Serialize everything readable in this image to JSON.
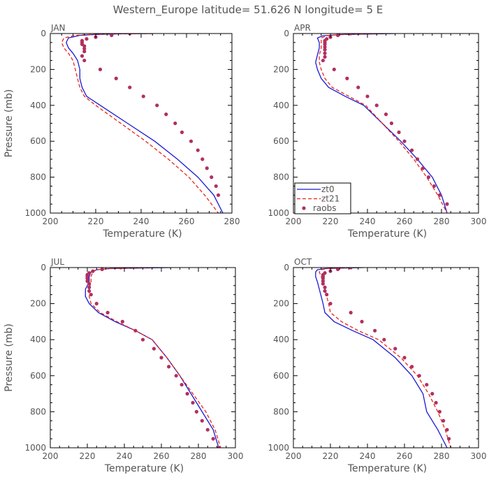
{
  "title": "Western_Europe  latitude= 51.626 N longitude= 5 E",
  "colors": {
    "zt0": "#1a1ad6",
    "zt21": "#e8261a",
    "raobs": "#b03060",
    "axis": "#000000",
    "text": "#555555"
  },
  "chart_data": [
    {
      "type": "line",
      "panel": "JAN",
      "xlabel": "Temperature (K)",
      "ylabel": "Pressure (mb)",
      "xlim": [
        200,
        280
      ],
      "ylim": [
        1000,
        0
      ],
      "xticks": [
        200,
        220,
        240,
        260,
        280
      ],
      "yticks": [
        0,
        200,
        400,
        600,
        800,
        1000
      ],
      "legend": null,
      "series": [
        {
          "name": "zt0",
          "style": "solid",
          "x": [
            245,
            230,
            220,
            213,
            208,
            207,
            208,
            210,
            212,
            213,
            213,
            214,
            216,
            222,
            234,
            246,
            256,
            265,
            272,
            276
          ],
          "y": [
            0,
            2,
            5,
            10,
            25,
            50,
            80,
            110,
            150,
            200,
            250,
            300,
            350,
            400,
            500,
            600,
            700,
            800,
            900,
            1000
          ]
        },
        {
          "name": "zt21",
          "style": "dashed",
          "x": [
            245,
            228,
            218,
            211,
            206,
            205,
            206,
            208,
            210,
            211,
            212,
            213,
            215,
            220,
            231,
            242,
            252,
            261,
            268,
            274
          ],
          "y": [
            0,
            2,
            5,
            10,
            25,
            50,
            80,
            110,
            150,
            200,
            250,
            300,
            350,
            400,
            500,
            600,
            700,
            800,
            900,
            1000
          ]
        },
        {
          "name": "raobs",
          "style": "marker",
          "x": [
            235,
            227,
            220,
            216,
            214,
            214,
            214,
            215,
            215,
            215,
            214,
            215,
            222,
            229,
            235,
            241,
            247,
            251,
            255,
            258,
            262,
            265,
            267,
            269,
            271,
            273,
            274
          ],
          "y": [
            0,
            10,
            20,
            30,
            40,
            50,
            60,
            70,
            85,
            100,
            125,
            150,
            200,
            250,
            300,
            350,
            400,
            450,
            500,
            550,
            600,
            650,
            700,
            750,
            800,
            850,
            900
          ],
          "note": ""
        }
      ]
    },
    {
      "type": "line",
      "panel": "APR",
      "xlabel": "Temperature (K)",
      "ylabel": "",
      "xlim": [
        200,
        300
      ],
      "ylim": [
        1000,
        0
      ],
      "xticks": [
        200,
        220,
        240,
        260,
        280,
        300
      ],
      "yticks": [
        0,
        200,
        400,
        600,
        800,
        1000
      ],
      "legend": "bottom-left",
      "series": [
        {
          "name": "zt0",
          "style": "solid",
          "x": [
            255,
            238,
            226,
            216,
            213,
            214,
            214,
            213,
            212,
            213,
            215,
            219,
            228,
            238,
            248,
            258,
            267,
            275,
            280,
            283
          ],
          "y": [
            0,
            3,
            6,
            12,
            25,
            50,
            80,
            120,
            160,
            200,
            250,
            300,
            350,
            400,
            500,
            600,
            700,
            800,
            900,
            1000
          ]
        },
        {
          "name": "zt21",
          "style": "dashed",
          "x": [
            250,
            235,
            225,
            218,
            215,
            215,
            215,
            214,
            214,
            215,
            217,
            221,
            230,
            239,
            248,
            257,
            265,
            272,
            278,
            283
          ],
          "y": [
            0,
            3,
            6,
            12,
            25,
            50,
            80,
            120,
            160,
            200,
            250,
            300,
            350,
            400,
            500,
            600,
            700,
            800,
            900,
            1000
          ]
        },
        {
          "name": "raobs",
          "style": "marker",
          "x": [
            231,
            224,
            220,
            218,
            217,
            217,
            217,
            217,
            217,
            217,
            217,
            216,
            222,
            229,
            235,
            240,
            245,
            250,
            253,
            257,
            260,
            264,
            267,
            270,
            273,
            276,
            279,
            283
          ],
          "y": [
            0,
            10,
            20,
            30,
            40,
            50,
            60,
            75,
            90,
            110,
            130,
            150,
            200,
            250,
            300,
            350,
            400,
            450,
            500,
            550,
            600,
            650,
            700,
            750,
            800,
            850,
            900,
            950
          ]
        }
      ]
    },
    {
      "type": "line",
      "panel": "JUL",
      "xlabel": "Temperature (K)",
      "ylabel": "Pressure (mb)",
      "xlim": [
        200,
        300
      ],
      "ylim": [
        1000,
        0
      ],
      "xticks": [
        200,
        220,
        240,
        260,
        280,
        300
      ],
      "yticks": [
        0,
        200,
        400,
        600,
        800,
        1000
      ],
      "legend": null,
      "series": [
        {
          "name": "zt0",
          "style": "solid",
          "x": [
            265,
            245,
            232,
            225,
            222,
            221,
            221,
            219,
            219,
            221,
            226,
            235,
            246,
            255,
            263,
            270,
            276,
            282,
            288,
            291
          ],
          "y": [
            0,
            3,
            6,
            12,
            25,
            50,
            80,
            120,
            160,
            200,
            250,
            300,
            350,
            400,
            500,
            600,
            700,
            800,
            900,
            1000
          ]
        },
        {
          "name": "zt21",
          "style": "dashed",
          "x": [
            258,
            242,
            231,
            225,
            223,
            222,
            222,
            221,
            221,
            222,
            227,
            236,
            246,
            255,
            263,
            270,
            277,
            284,
            289,
            292
          ],
          "y": [
            0,
            3,
            6,
            12,
            25,
            50,
            80,
            120,
            160,
            200,
            250,
            300,
            350,
            400,
            500,
            600,
            700,
            800,
            900,
            1000
          ]
        },
        {
          "name": "raobs",
          "style": "marker",
          "x": [
            238,
            228,
            223,
            221,
            220,
            220,
            220,
            220,
            221,
            221,
            221,
            222,
            225,
            231,
            239,
            246,
            250,
            256,
            260,
            264,
            268,
            271,
            274,
            277,
            279,
            282,
            285,
            288,
            291
          ],
          "y": [
            0,
            10,
            20,
            30,
            40,
            50,
            60,
            75,
            90,
            110,
            130,
            150,
            200,
            250,
            300,
            350,
            400,
            450,
            500,
            550,
            600,
            650,
            700,
            750,
            800,
            850,
            900,
            950,
            1000
          ]
        }
      ]
    },
    {
      "type": "line",
      "panel": "OCT",
      "xlabel": "Temperature (K)",
      "ylabel": "",
      "xlim": [
        200,
        300
      ],
      "ylim": [
        1000,
        0
      ],
      "xticks": [
        200,
        220,
        240,
        260,
        280,
        300
      ],
      "yticks": [
        0,
        200,
        400,
        600,
        800,
        1000
      ],
      "legend": null,
      "series": [
        {
          "name": "zt0",
          "style": "solid",
          "x": [
            238,
            225,
            217,
            213,
            212,
            212,
            213,
            214,
            215,
            216,
            217,
            222,
            232,
            243,
            255,
            264,
            270,
            272,
            278,
            283
          ],
          "y": [
            0,
            3,
            6,
            12,
            25,
            50,
            80,
            120,
            160,
            200,
            250,
            300,
            350,
            400,
            500,
            600,
            700,
            800,
            900,
            1000
          ]
        },
        {
          "name": "zt21",
          "style": "dashed",
          "x": [
            235,
            224,
            218,
            215,
            214,
            215,
            216,
            217,
            218,
            219,
            220,
            226,
            235,
            246,
            258,
            267,
            273,
            278,
            282,
            285
          ],
          "y": [
            0,
            3,
            6,
            12,
            25,
            50,
            80,
            120,
            160,
            200,
            250,
            300,
            350,
            400,
            500,
            600,
            700,
            800,
            900,
            1000
          ]
        },
        {
          "name": "raobs",
          "style": "marker",
          "x": [
            231,
            224,
            220,
            217,
            216,
            216,
            216,
            216,
            216,
            217,
            217,
            218,
            220,
            231,
            237,
            244,
            249,
            255,
            260,
            264,
            268,
            272,
            275,
            277,
            279,
            281,
            283,
            284
          ],
          "y": [
            0,
            10,
            20,
            30,
            40,
            50,
            60,
            75,
            90,
            110,
            130,
            150,
            200,
            250,
            300,
            350,
            400,
            450,
            500,
            550,
            600,
            650,
            700,
            750,
            800,
            850,
            900,
            950
          ]
        }
      ]
    }
  ]
}
